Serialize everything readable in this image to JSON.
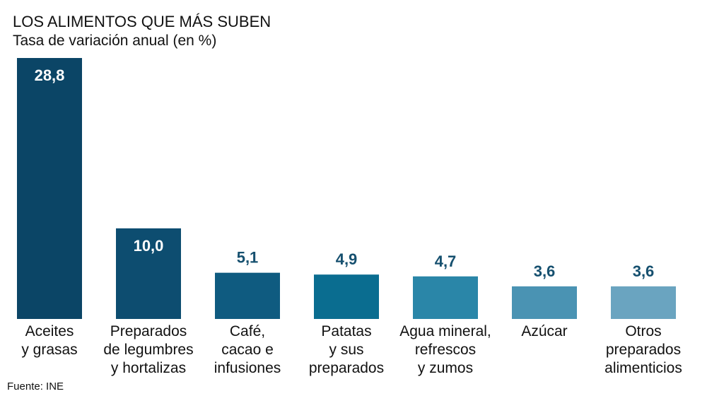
{
  "chart_data": {
    "type": "bar",
    "title": "LOS ALIMENTOS QUE MÁS SUBEN",
    "subtitle": "Tasa de variación anual (en %)",
    "categories": [
      "Aceites\ny grasas",
      "Preparados\nde legumbres\ny hortalizas",
      "Café,\ncacao e\ninfusiones",
      "Patatas\ny sus\npreparados",
      "Agua mineral,\nrefrescos\ny zumos",
      "Azúcar",
      "Otros\npreparados\nalimenticios"
    ],
    "values": [
      28.8,
      10.0,
      5.1,
      4.9,
      4.7,
      3.6,
      3.6
    ],
    "value_labels": [
      "28,8",
      "10,0",
      "5,1",
      "4,9",
      "4,7",
      "3,6",
      "3,6"
    ],
    "colors": [
      "#0b4566",
      "#0d4d70",
      "#0f5b80",
      "#0a6d90",
      "#2a86a8",
      "#4a93b3",
      "#6aa4c0"
    ],
    "source": "Fuente: INE"
  }
}
